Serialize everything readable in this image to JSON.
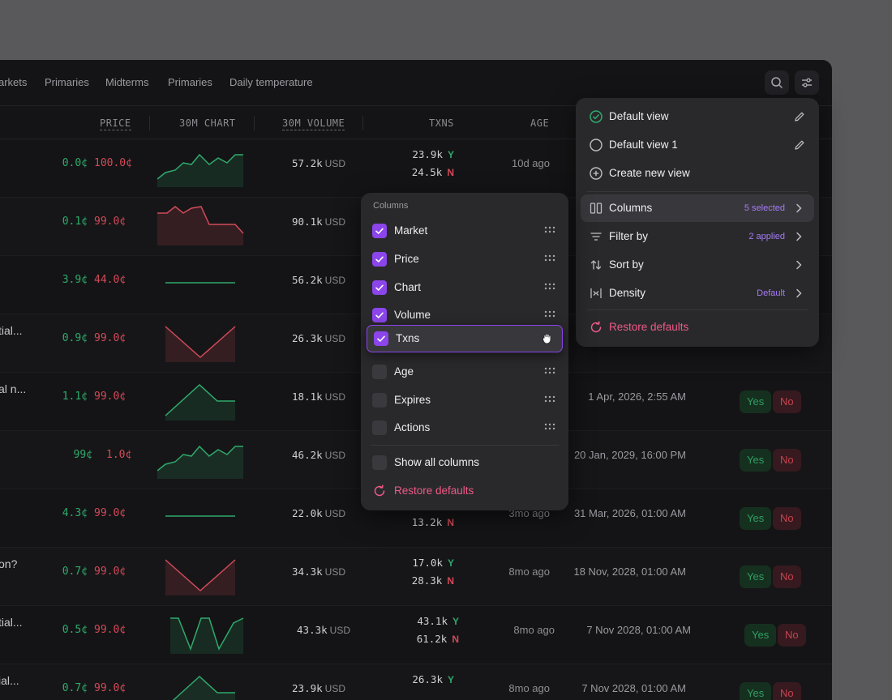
{
  "nav": {
    "tabs": [
      "arkets",
      "Primaries",
      "Midterms",
      "Primaries",
      "Daily temperature"
    ]
  },
  "table": {
    "headers": {
      "price": "PRICE",
      "chart": "30M CHART",
      "volume": "30M VOLUME",
      "txns": "TXNS",
      "age": "AGE"
    },
    "rows": [
      {
        "market": "",
        "yes_price": "0.0¢",
        "no_price": "100.0¢",
        "trend": "up",
        "volume": "57.2k",
        "volume_unit": "USD",
        "txn_yes": "23.9k",
        "txn_no": "24.5k",
        "age": "10d ago",
        "expires": "",
        "show_pills": false
      },
      {
        "market": "",
        "yes_price": "0.1¢",
        "no_price": "99.0¢",
        "trend": "down",
        "volume": "90.1k",
        "volume_unit": "USD",
        "txn_yes": "",
        "txn_no": "",
        "age": "",
        "expires": "",
        "show_pills": false
      },
      {
        "market": "",
        "yes_price": "3.9¢",
        "no_price": "44.0¢",
        "trend": "flat",
        "volume": "56.2k",
        "volume_unit": "USD",
        "txn_yes": "",
        "txn_no": "",
        "age": "",
        "expires": "",
        "show_pills": false
      },
      {
        "market": "tial...",
        "yes_price": "0.9¢",
        "no_price": "99.0¢",
        "trend": "v",
        "volume": "26.3k",
        "volume_unit": "USD",
        "txn_yes": "",
        "txn_no": "",
        "age": "",
        "expires": "",
        "show_pills": false
      },
      {
        "market": "al n...",
        "yes_price": "1.1¢",
        "no_price": "99.0¢",
        "trend": "peak",
        "volume": "18.1k",
        "volume_unit": "USD",
        "txn_yes": "",
        "txn_no": "",
        "age": "",
        "expires": "1 Apr, 2026, 2:55 AM",
        "show_pills": true
      },
      {
        "market": "",
        "yes_price": "99¢",
        "no_price": "1.0¢",
        "trend": "up",
        "volume": "46.2k",
        "volume_unit": "USD",
        "txn_yes": "",
        "txn_no": "",
        "age": "",
        "expires": "20 Jan, 2029, 16:00 PM",
        "show_pills": true
      },
      {
        "market": "",
        "yes_price": "4.3¢",
        "no_price": "99.0¢",
        "trend": "flat",
        "volume": "22.0k",
        "volume_unit": "USD",
        "txn_yes": "",
        "txn_no": "13.2k",
        "age": "3mo ago",
        "expires": "31 Mar, 2026, 01:00 AM",
        "show_pills": true
      },
      {
        "market": "on?",
        "yes_price": "0.7¢",
        "no_price": "99.0¢",
        "trend": "v",
        "volume": "34.3k",
        "volume_unit": "USD",
        "txn_yes": "17.0k",
        "txn_no": "28.3k",
        "age": "8mo ago",
        "expires": "18 Nov, 2028, 01:00 AM",
        "show_pills": true
      },
      {
        "market": "tial...",
        "yes_price": "0.5¢",
        "no_price": "99.0¢",
        "trend": "zig",
        "volume": "43.3k",
        "volume_unit": "USD",
        "txn_yes": "43.1k",
        "txn_no": "61.2k",
        "age": "8mo ago",
        "expires": "7 Nov 2028, 01:00 AM",
        "show_pills": true
      },
      {
        "market": "ial...",
        "yes_price": "0.7¢",
        "no_price": "99.0¢",
        "trend": "peak",
        "volume": "23.9k",
        "volume_unit": "USD",
        "txn_yes": "26.3k",
        "txn_no": "",
        "age": "8mo ago",
        "expires": "7 Nov 2028, 01:00 AM",
        "show_pills": true
      }
    ],
    "yes_letter": "Y",
    "no_letter": "N",
    "yes_label": "Yes",
    "no_label": "No"
  },
  "view_menu": {
    "views": [
      {
        "label": "Default view",
        "selected": true
      },
      {
        "label": "Default view 1",
        "selected": false
      }
    ],
    "create_label": "Create new view",
    "options": [
      {
        "label": "Columns",
        "badge": "5 selected",
        "icon": "columns-icon"
      },
      {
        "label": "Filter by",
        "badge": "2 applied",
        "icon": "filter-icon"
      },
      {
        "label": "Sort by",
        "badge": "",
        "icon": "sort-icon"
      },
      {
        "label": "Density",
        "badge": "Default",
        "icon": "density-icon"
      }
    ],
    "restore_label": "Restore defaults"
  },
  "columns_panel": {
    "title": "Columns",
    "items": [
      {
        "label": "Market",
        "checked": true
      },
      {
        "label": "Price",
        "checked": true
      },
      {
        "label": "Chart",
        "checked": true
      },
      {
        "label": "Volume",
        "checked": true
      },
      {
        "label": "Txns",
        "checked": true,
        "dragging": true
      },
      {
        "label": "Age",
        "checked": false
      },
      {
        "label": "Expires",
        "checked": false
      },
      {
        "label": "Actions",
        "checked": false
      }
    ],
    "show_all_label": "Show all columns",
    "restore_label": "Restore defaults"
  },
  "colors": {
    "accent": "#8b45ea",
    "green": "#2faa6b",
    "red": "#d24a58",
    "restore": "#ee5a86"
  }
}
